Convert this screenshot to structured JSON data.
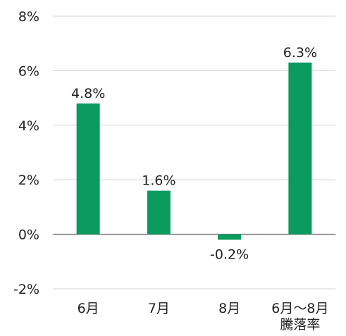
{
  "chart_data": {
    "type": "bar",
    "categories": [
      "6月",
      "7月",
      "8月",
      "6月〜8月\n騰落率"
    ],
    "values": [
      4.8,
      1.6,
      -0.2,
      6.3
    ],
    "data_labels": [
      "4.8%",
      "1.6%",
      "-0.2%",
      "6.3%"
    ],
    "ylim": [
      -2,
      8
    ],
    "yticks": [
      -2,
      0,
      2,
      4,
      6,
      8
    ],
    "ytick_labels": [
      "-2%",
      "0%",
      "2%",
      "4%",
      "6%",
      "8%"
    ],
    "grid": true,
    "bar_color": "#0a9b5e",
    "grid_color": "#d0d0d0",
    "zero_line_color": "#7a7a7a",
    "text_color": "#222222"
  }
}
